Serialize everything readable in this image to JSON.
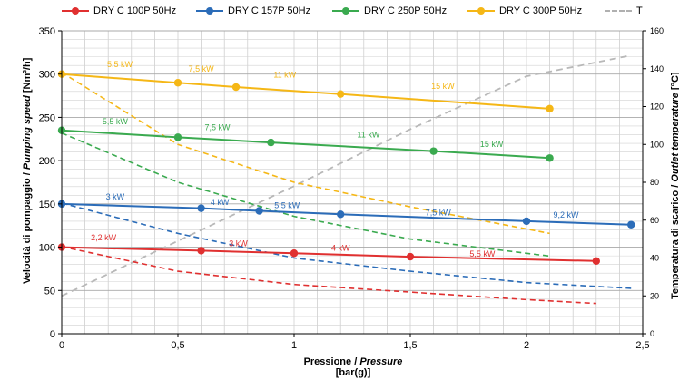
{
  "chart_data": {
    "type": "line",
    "xlabel": "Pressione / Pressure",
    "xlabel_plain": "Pressione / ",
    "xlabel_italic": "Pressure",
    "xunit": "[bar(g)]",
    "ylabel": "Velocità di pompaggio / Pumping speed [Nm³/h]",
    "ylabel_plain": "Velocità di pompaggio / ",
    "ylabel_italic": "Pumping speed",
    "ylabel_unit": " [Nm³/h]",
    "y2label": "Temperatura di scarico / Outlet temperature [°C]",
    "y2label_plain": "Temperatura di scarico / ",
    "y2label_italic": "Outlet temperature",
    "y2label_unit": " [°C]",
    "xlim": [
      0,
      2.5
    ],
    "ylim": [
      0,
      350
    ],
    "y2lim": [
      0,
      160
    ],
    "x_ticks": [
      0,
      0.5,
      1,
      1.5,
      2,
      2.5
    ],
    "x_tick_labels": [
      "0",
      "0,5",
      "1",
      "1,5",
      "2",
      "2,5"
    ],
    "y_ticks": [
      0,
      50,
      100,
      150,
      200,
      250,
      300,
      350
    ],
    "y_tick_labels": [
      "0",
      "50",
      "100",
      "150",
      "200",
      "250",
      "300",
      "350"
    ],
    "y2_ticks": [
      0,
      20,
      40,
      60,
      80,
      100,
      120,
      140,
      160
    ],
    "y2_tick_labels": [
      "0",
      "20",
      "40",
      "60",
      "80",
      "100",
      "120",
      "140",
      "160"
    ],
    "grid": true,
    "legend_position": "top",
    "series": [
      {
        "name": "DRY C 100P 50Hz",
        "color": "#e03030",
        "speed": {
          "x": [
            0,
            0.6,
            1.0,
            1.5,
            2.3
          ],
          "y": [
            100,
            96,
            93,
            89,
            84
          ]
        },
        "power_labels": [
          {
            "x": 0.18,
            "y": 108,
            "text": "2,2 kW"
          },
          {
            "x": 0.76,
            "y": 101,
            "text": "3 kW"
          },
          {
            "x": 1.2,
            "y": 96,
            "text": "4 kW"
          },
          {
            "x": 1.81,
            "y": 89,
            "text": "5,5 kW"
          }
        ],
        "temperature": {
          "x": [
            0,
            0.5,
            1,
            1.5,
            2,
            2.3
          ],
          "y": [
            46,
            33,
            26,
            22,
            18,
            16
          ]
        }
      },
      {
        "name": "DRY C 157P 50Hz",
        "color": "#2b6cb8",
        "speed": {
          "x": [
            0,
            0.6,
            0.85,
            1.2,
            2.0,
            2.45
          ],
          "y": [
            150,
            145,
            142,
            138,
            130,
            126
          ]
        },
        "power_labels": [
          {
            "x": 0.23,
            "y": 155,
            "text": "3 kW"
          },
          {
            "x": 0.68,
            "y": 149,
            "text": "4 kW"
          },
          {
            "x": 0.97,
            "y": 145,
            "text": "5,5 kW"
          },
          {
            "x": 1.62,
            "y": 137,
            "text": "7,5 kW"
          },
          {
            "x": 2.17,
            "y": 134,
            "text": "9,2 kW"
          }
        ],
        "temperature": {
          "x": [
            0,
            0.5,
            1,
            1.5,
            2,
            2.45
          ],
          "y": [
            69,
            53,
            40,
            33,
            27,
            24
          ]
        }
      },
      {
        "name": "DRY C 250P 50Hz",
        "color": "#3aaa4f",
        "speed": {
          "x": [
            0,
            0.5,
            0.9,
            1.6,
            2.1
          ],
          "y": [
            235,
            227,
            221,
            211,
            203
          ]
        },
        "power_labels": [
          {
            "x": 0.23,
            "y": 242,
            "text": "5,5 kW"
          },
          {
            "x": 0.67,
            "y": 235,
            "text": "7,5 kW"
          },
          {
            "x": 1.32,
            "y": 227,
            "text": "11 kW"
          },
          {
            "x": 1.85,
            "y": 216,
            "text": "15 kW"
          }
        ],
        "temperature": {
          "x": [
            0,
            0.5,
            1,
            1.5,
            2.1
          ],
          "y": [
            106,
            80,
            62,
            50,
            41
          ]
        }
      },
      {
        "name": "DRY C 300P 50Hz",
        "color": "#f5b716",
        "speed": {
          "x": [
            0,
            0.5,
            0.75,
            1.2,
            2.1
          ],
          "y": [
            300,
            290,
            285,
            277,
            260
          ]
        },
        "power_labels": [
          {
            "x": 0.25,
            "y": 308,
            "text": "5,5 kW"
          },
          {
            "x": 0.6,
            "y": 303,
            "text": "7,5 kW"
          },
          {
            "x": 0.96,
            "y": 296,
            "text": "11 kW"
          },
          {
            "x": 1.64,
            "y": 283,
            "text": "15 kW"
          }
        ],
        "temperature": {
          "x": [
            0,
            0.5,
            1,
            1.5,
            2.1
          ],
          "y": [
            138,
            100,
            80,
            67,
            53
          ]
        }
      }
    ],
    "temperature_series": {
      "name": "T",
      "color": "#b8b8b8",
      "x": [
        0,
        0.5,
        1,
        1.5,
        2.0,
        2.45
      ],
      "y": [
        20,
        49,
        78,
        108,
        136,
        147
      ]
    }
  }
}
